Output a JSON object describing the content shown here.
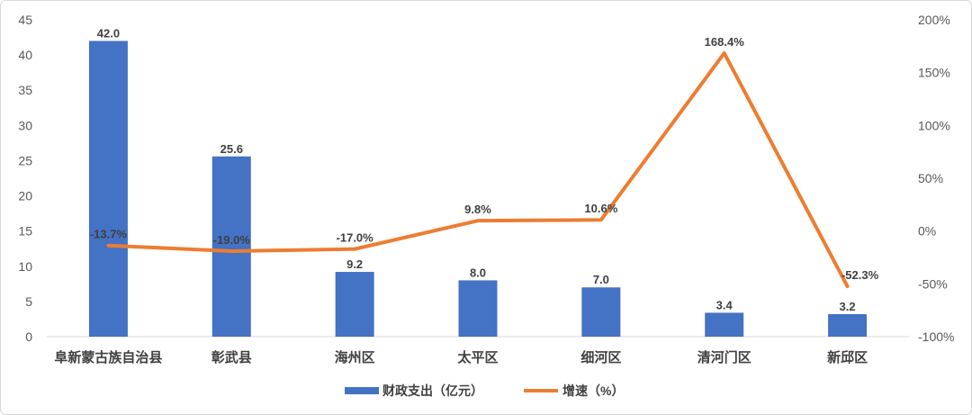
{
  "chart_data": {
    "type": "bar",
    "categories": [
      "阜新蒙古族自治县",
      "彰武县",
      "海州区",
      "太平区",
      "细河区",
      "清河门区",
      "新邱区"
    ],
    "series": [
      {
        "name": "财政支出（亿元）",
        "type": "bar",
        "axis": "left",
        "color": "#4472C4",
        "values": [
          42.0,
          25.6,
          9.2,
          8.0,
          7.0,
          3.4,
          3.2
        ],
        "labels": [
          "42.0",
          "25.6",
          "9.2",
          "8.0",
          "7.0",
          "3.4",
          "3.2"
        ]
      },
      {
        "name": "增速（%）",
        "type": "line",
        "axis": "right",
        "color": "#ED7D31",
        "values": [
          -13.7,
          -19.0,
          -17.0,
          9.8,
          10.6,
          168.4,
          -52.3
        ],
        "labels": [
          "-13.7%",
          "-19.0%",
          "-17.0%",
          "9.8%",
          "10.6%",
          "168.4%",
          "-52.3%"
        ]
      }
    ],
    "y_left": {
      "min": 0,
      "max": 45,
      "ticks": [
        "0",
        "5",
        "10",
        "15",
        "20",
        "25",
        "30",
        "35",
        "40",
        "45"
      ]
    },
    "y_right": {
      "min": -100,
      "max": 200,
      "ticks": [
        "-100%",
        "-50%",
        "0%",
        "50%",
        "100%",
        "150%",
        "200%"
      ]
    },
    "grid": false,
    "legend": "bottom-center",
    "legend_labels": {
      "bar": "财政支出（亿元）",
      "line": "增速（%）"
    }
  }
}
